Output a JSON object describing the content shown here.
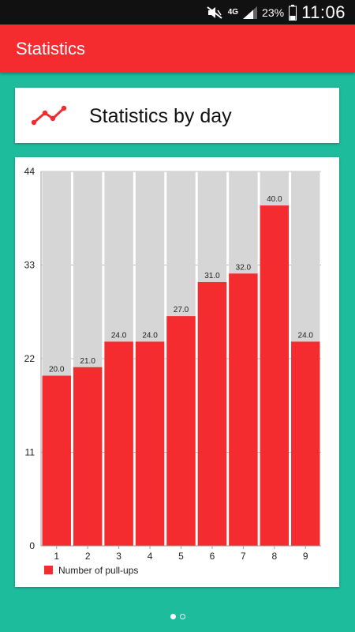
{
  "status_bar": {
    "network": "4G",
    "battery": "23%",
    "time": "11:06"
  },
  "app_bar": {
    "title": "Statistics"
  },
  "header_card": {
    "title": "Statistics by day",
    "icon": "line-chart-icon"
  },
  "colors": {
    "accent": "#f42c30",
    "background": "#1dbc9c",
    "track": "#d6d6d6"
  },
  "pager": {
    "pages": 2,
    "active": 0
  },
  "chart_data": {
    "type": "bar",
    "categories": [
      "1",
      "2",
      "3",
      "4",
      "5",
      "6",
      "7",
      "8",
      "9"
    ],
    "series": [
      {
        "name": "Number of pull-ups",
        "values": [
          20.0,
          21.0,
          24.0,
          24.0,
          27.0,
          31.0,
          32.0,
          40.0,
          24.0
        ]
      }
    ],
    "data_labels": [
      "20.0",
      "21.0",
      "24.0",
      "24.0",
      "27.0",
      "31.0",
      "32.0",
      "40.0",
      "24.0"
    ],
    "ylim": [
      0,
      44
    ],
    "yticks": [
      "0",
      "11",
      "22",
      "33",
      "44"
    ],
    "grid": true,
    "legend": "bottom-left",
    "xlabel": "",
    "ylabel": ""
  }
}
